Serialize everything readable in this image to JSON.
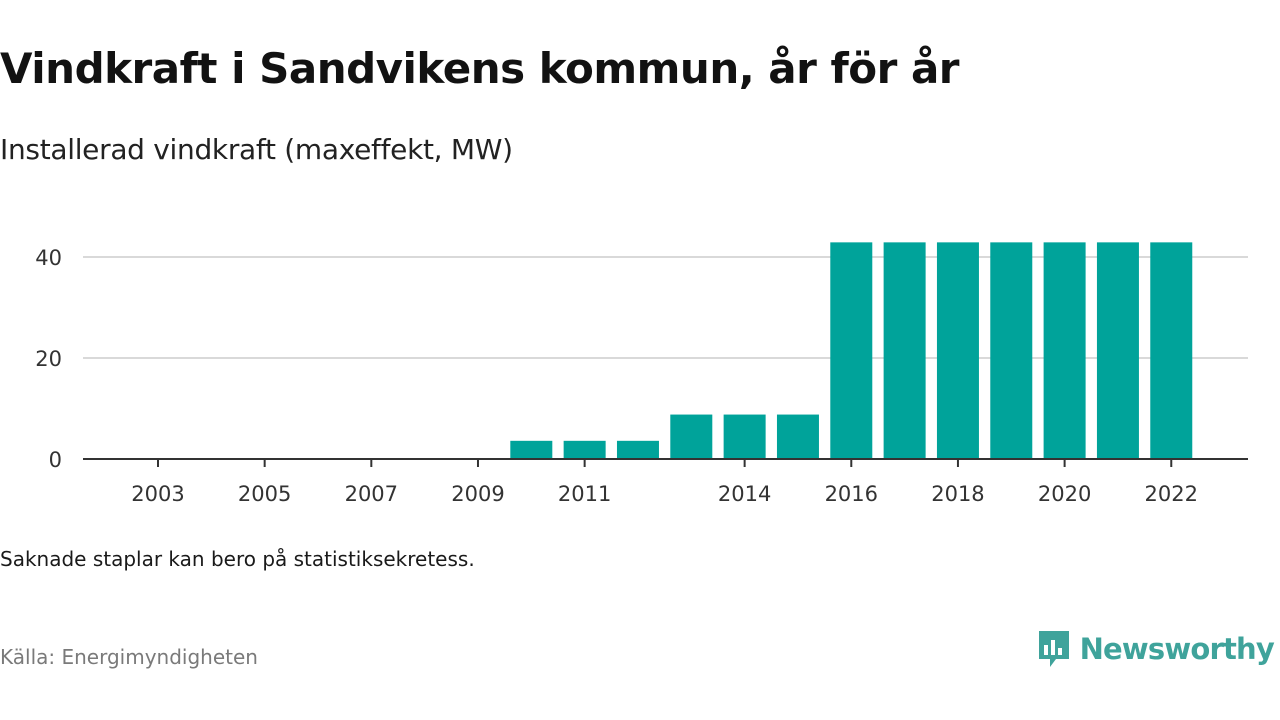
{
  "title": "Vindkraft i Sandvikens kommun, år för år",
  "subtitle": "Installerad vindkraft (maxeffekt, MW)",
  "note": "Saknade staplar kan bero på statistiksekretess.",
  "source": "Källa: Energimyndigheten",
  "brand": {
    "name": "Newsworthy",
    "icon": "newsworthy-logo-icon",
    "color": "#3fa39b"
  },
  "chart_data": {
    "type": "bar",
    "x": [
      2003,
      2004,
      2005,
      2006,
      2007,
      2008,
      2009,
      2010,
      2011,
      2012,
      2013,
      2014,
      2015,
      2016,
      2017,
      2018,
      2019,
      2020,
      2021,
      2022
    ],
    "values": [
      0,
      0,
      0,
      0,
      0,
      0,
      0,
      3.6,
      3.6,
      3.6,
      8.8,
      8.8,
      8.8,
      42.9,
      42.9,
      42.9,
      42.9,
      42.9,
      42.9,
      42.9
    ],
    "x_tick_labels": [
      "2003",
      "2005",
      "2007",
      "2009",
      "2011",
      "2014",
      "2016",
      "2018",
      "2020",
      "2022"
    ],
    "y_ticks": [
      0,
      20,
      40
    ],
    "ylim": [
      0,
      45
    ],
    "xlabel": "",
    "ylabel": "",
    "grid": true,
    "bar_color": "#00a39a",
    "grid_color": "#d9d9d9",
    "axis_color": "#333333"
  }
}
